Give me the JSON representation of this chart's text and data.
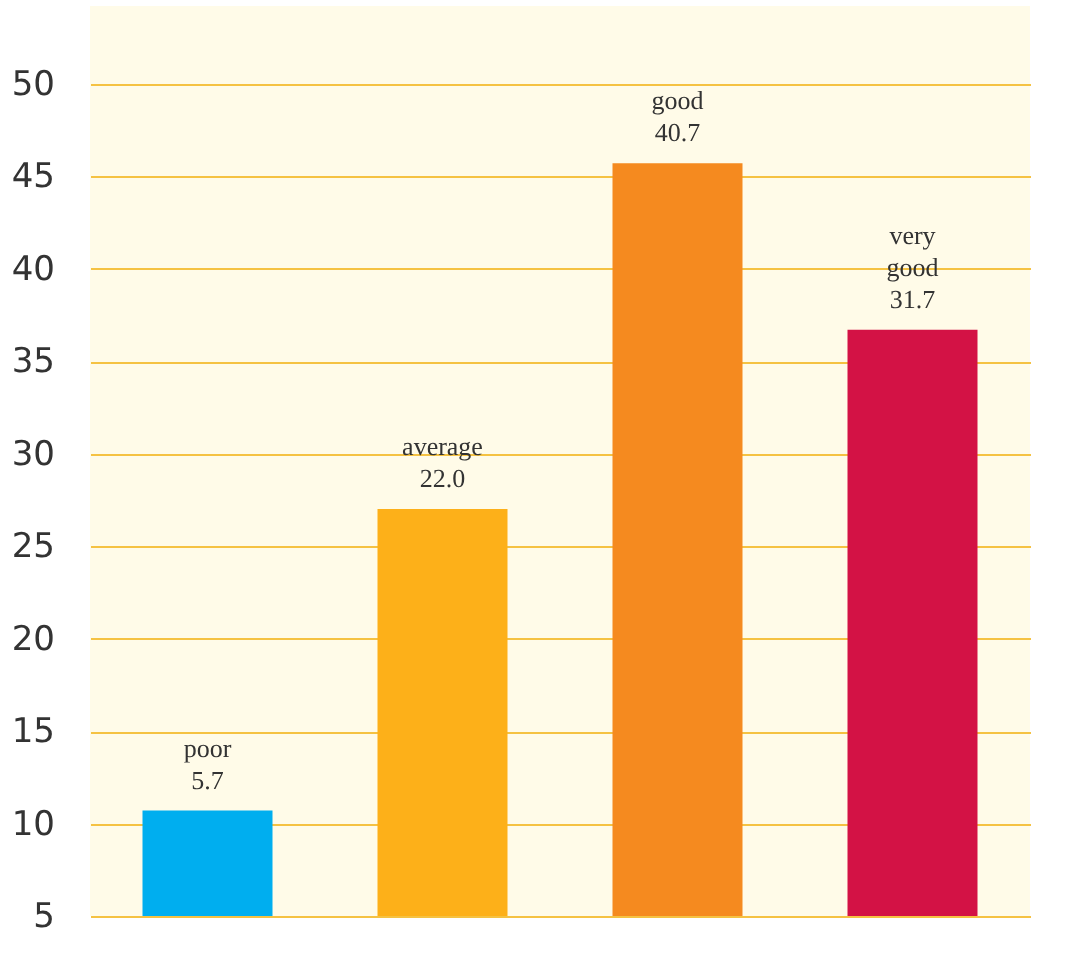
{
  "chart_data": {
    "type": "bar",
    "categories": [
      "poor",
      "average",
      "good",
      "very good"
    ],
    "values": [
      5.7,
      22.0,
      40.7,
      31.7
    ],
    "base": [
      5,
      5,
      5,
      5
    ],
    "colors": [
      "#00aeef",
      "#fdb019",
      "#f58a1f",
      "#d31245"
    ],
    "value_labels": [
      "5.7",
      "22.0",
      "40.7",
      "31.7"
    ],
    "ylim": [
      5,
      54.2
    ],
    "yticks": [
      5,
      10,
      15,
      20,
      25,
      30,
      35,
      40,
      45,
      50
    ],
    "grid": "y",
    "tick_labels": "y",
    "legend": false
  }
}
